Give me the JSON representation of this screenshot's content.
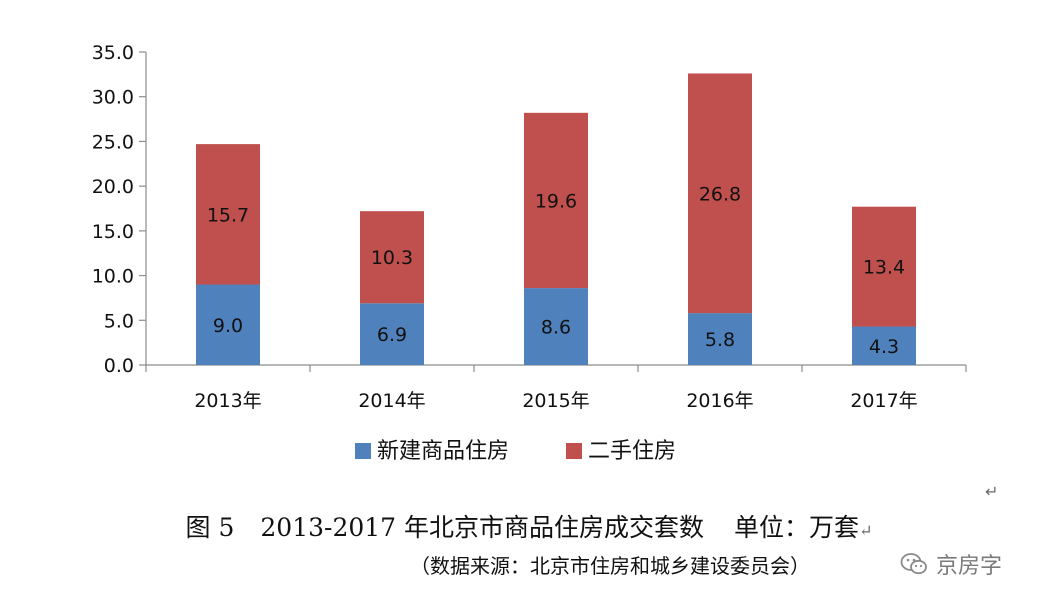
{
  "chart_data": {
    "type": "bar",
    "stacked": true,
    "categories": [
      "2013年",
      "2014年",
      "2015年",
      "2016年",
      "2017年"
    ],
    "series": [
      {
        "name": "新建商品住房",
        "values": [
          9.0,
          6.9,
          8.6,
          5.8,
          4.3
        ],
        "color": "#4f81bd"
      },
      {
        "name": "二手住房",
        "values": [
          15.7,
          10.3,
          19.6,
          26.8,
          13.4
        ],
        "color": "#c0504d"
      }
    ],
    "ylim": [
      0,
      35
    ],
    "yticks": [
      "0.0",
      "5.0",
      "10.0",
      "15.0",
      "20.0",
      "25.0",
      "30.0",
      "35.0"
    ],
    "grid": false,
    "legend_position": "bottom"
  },
  "caption": {
    "figure_no": "图 5",
    "title": "2013-2017 年北京市商品住房成交套数",
    "unit": "单位：万套",
    "source": "（数据来源：北京市住房和城乡建设委员会）"
  },
  "watermark": {
    "icon": "wechat-logo",
    "text": "京房字"
  },
  "marks": {
    "return_symbol": "↵"
  }
}
